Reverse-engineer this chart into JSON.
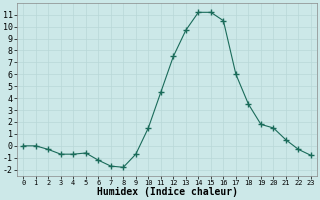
{
  "x": [
    0,
    1,
    2,
    3,
    4,
    5,
    6,
    7,
    8,
    9,
    10,
    11,
    12,
    13,
    14,
    15,
    16,
    17,
    18,
    19,
    20,
    21,
    22,
    23
  ],
  "y": [
    0.0,
    0.0,
    -0.3,
    -0.7,
    -0.7,
    -0.6,
    -1.2,
    -1.7,
    -1.8,
    -0.7,
    1.5,
    4.5,
    7.5,
    9.7,
    11.2,
    11.2,
    10.5,
    6.0,
    3.5,
    1.8,
    1.5,
    0.5,
    -0.3,
    -0.8
  ],
  "line_color": "#1a6b5a",
  "marker": "+",
  "marker_size": 4,
  "bg_color": "#cce8e8",
  "grid_color": "#b8d8d8",
  "xlabel": "Humidex (Indice chaleur)",
  "xlabel_fontsize": 7,
  "tick_fontsize": 6,
  "ylim": [
    -2.5,
    12.0
  ],
  "xlim": [
    -0.5,
    23.5
  ],
  "yticks": [
    -2,
    -1,
    0,
    1,
    2,
    3,
    4,
    5,
    6,
    7,
    8,
    9,
    10,
    11
  ],
  "xticks": [
    0,
    1,
    2,
    3,
    4,
    5,
    6,
    7,
    8,
    9,
    10,
    11,
    12,
    13,
    14,
    15,
    16,
    17,
    18,
    19,
    20,
    21,
    22,
    23
  ]
}
